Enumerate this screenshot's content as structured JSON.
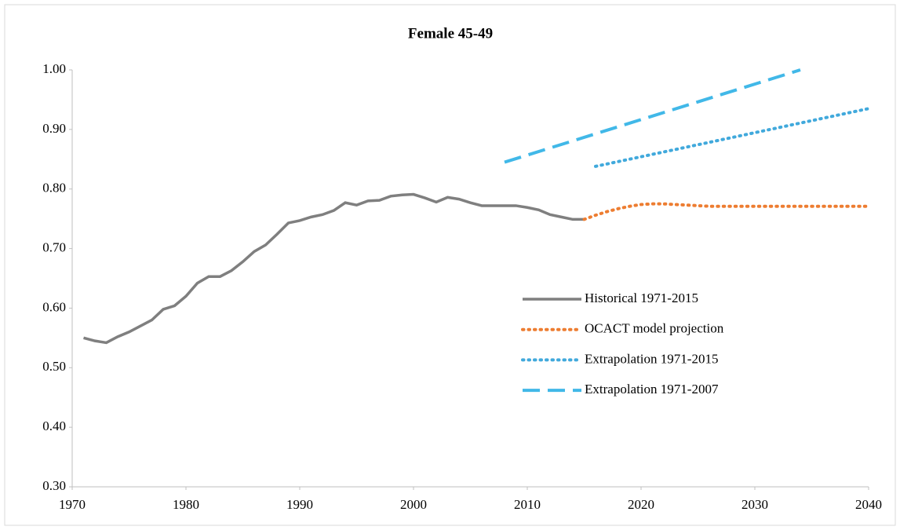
{
  "chart_data": {
    "type": "line",
    "title": "Female  45-49",
    "xlim": [
      1970,
      2040
    ],
    "xticks": [
      1970,
      1980,
      1990,
      2000,
      2010,
      2020,
      2030,
      2040
    ],
    "ylim": [
      0.3,
      1.0
    ],
    "yticks": [
      {
        "value": 0.3,
        "label": "0.30"
      },
      {
        "value": 0.4,
        "label": "0.40"
      },
      {
        "value": 0.5,
        "label": "0.50"
      },
      {
        "value": 0.6,
        "label": "0.60"
      },
      {
        "value": 0.7,
        "label": "0.70"
      },
      {
        "value": 0.8,
        "label": "0.80"
      },
      {
        "value": 0.9,
        "label": "0.90"
      },
      {
        "value": 1.0,
        "label": "1.00"
      }
    ],
    "grid": false,
    "legend": "right",
    "series": [
      {
        "name": "Historical 1971-2015",
        "color": "#7f7f7f",
        "line_style": "solid",
        "x": [
          1971,
          1972,
          1973,
          1974,
          1975,
          1976,
          1977,
          1978,
          1979,
          1980,
          1981,
          1982,
          1983,
          1984,
          1985,
          1986,
          1987,
          1988,
          1989,
          1990,
          1991,
          1992,
          1993,
          1994,
          1995,
          1996,
          1997,
          1998,
          1999,
          2000,
          2001,
          2002,
          2003,
          2004,
          2005,
          2006,
          2007,
          2008,
          2009,
          2010,
          2011,
          2012,
          2013,
          2014,
          2015
        ],
        "values": [
          0.55,
          0.545,
          0.542,
          0.552,
          0.56,
          0.57,
          0.58,
          0.598,
          0.604,
          0.62,
          0.642,
          0.653,
          0.653,
          0.663,
          0.678,
          0.695,
          0.706,
          0.724,
          0.743,
          0.747,
          0.753,
          0.757,
          0.764,
          0.777,
          0.773,
          0.78,
          0.781,
          0.788,
          0.79,
          0.791,
          0.785,
          0.778,
          0.786,
          0.783,
          0.777,
          0.772,
          0.772,
          0.772,
          0.772,
          0.769,
          0.765,
          0.757,
          0.753,
          0.749,
          0.749
        ]
      },
      {
        "name": "OCACT model projection",
        "color": "#ed7d31",
        "line_style": "dotted",
        "x": [
          2015,
          2016,
          2017,
          2018,
          2019,
          2020,
          2021,
          2022,
          2023,
          2024,
          2025,
          2026,
          2028,
          2030,
          2032,
          2034,
          2036,
          2038,
          2040
        ],
        "values": [
          0.749,
          0.756,
          0.762,
          0.767,
          0.771,
          0.774,
          0.775,
          0.775,
          0.774,
          0.773,
          0.772,
          0.771,
          0.771,
          0.771,
          0.771,
          0.771,
          0.771,
          0.771,
          0.771
        ]
      },
      {
        "name": "Extrapolation 1971-2015",
        "color": "#41a9dc",
        "line_style": "dotted",
        "x": [
          2016,
          2040
        ],
        "values": [
          0.838,
          0.935
        ]
      },
      {
        "name": "Extrapolation 1971-2007",
        "color": "#41b8e8",
        "line_style": "dashed",
        "x": [
          2008,
          2034
        ],
        "values": [
          0.845,
          1.0
        ]
      }
    ]
  }
}
